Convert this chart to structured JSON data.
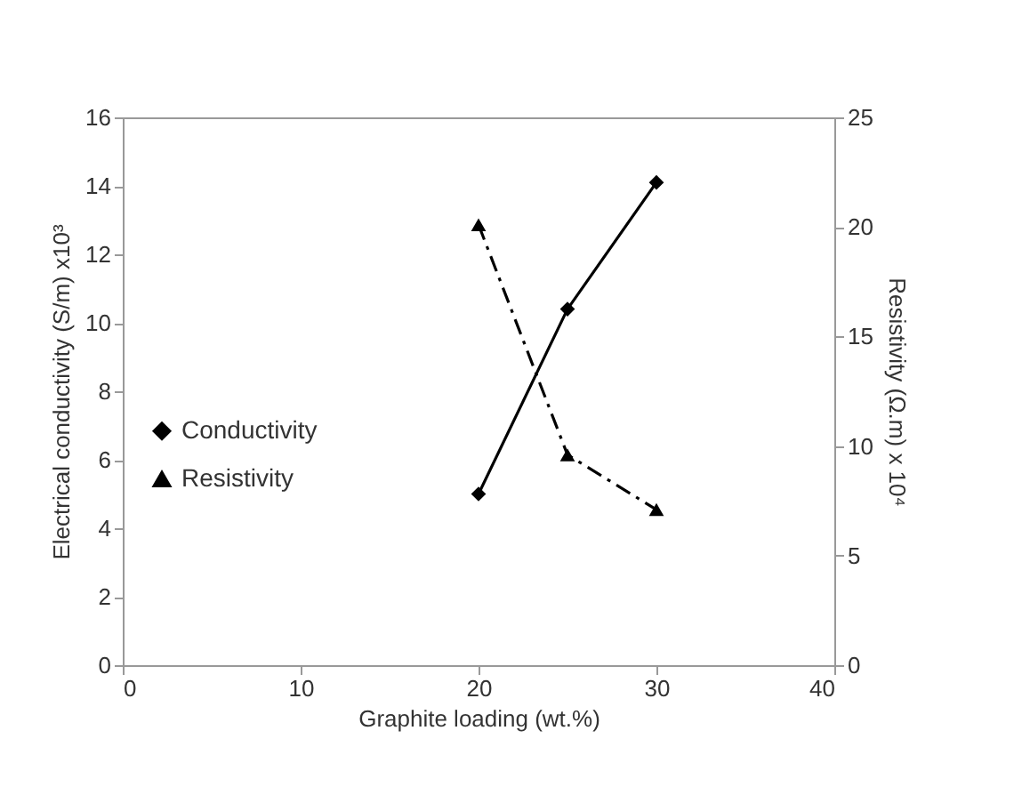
{
  "chart_data": {
    "type": "line",
    "xlabel": "Graphite loading (wt.%)",
    "ylabel": "Electrical conductivity (S/m) x10³",
    "y2label": "Resistivity (Ω.m) x 10⁴",
    "x": [
      20,
      25,
      30
    ],
    "series": [
      {
        "name": "Conductivity",
        "color": "#000000",
        "values": [
          5,
          10.4,
          14.1
        ],
        "marker": "diamond",
        "line_style": "solid"
      },
      {
        "name": "Resistivity",
        "color": "#000000",
        "values": [
          20.1,
          9.6,
          7.1
        ],
        "marker": "triangle",
        "line_style": "dashed",
        "axis": "y2"
      }
    ],
    "xlim": [
      0,
      40
    ],
    "xticks": [
      0,
      10,
      20,
      30,
      40
    ],
    "ylim": [
      0,
      16
    ],
    "yticks": [
      0,
      2,
      4,
      6,
      8,
      10,
      12,
      14,
      16
    ],
    "y2lim": [
      0,
      25
    ],
    "y2ticks": [
      0,
      5,
      10,
      15,
      20,
      25
    ],
    "grid": false,
    "legend": "left"
  }
}
